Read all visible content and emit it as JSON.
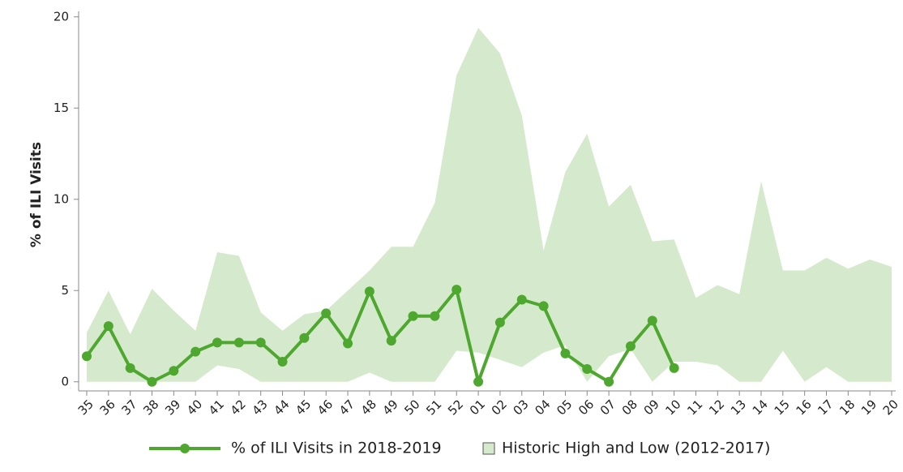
{
  "chart_data": {
    "type": "line",
    "y_label": "% of ILI Visits",
    "categories": [
      "35",
      "36",
      "37",
      "38",
      "39",
      "40",
      "41",
      "42",
      "43",
      "44",
      "45",
      "46",
      "47",
      "48",
      "49",
      "50",
      "51",
      "52",
      "01",
      "02",
      "03",
      "04",
      "05",
      "06",
      "07",
      "08",
      "09",
      "10",
      "11",
      "12",
      "13",
      "14",
      "15",
      "16",
      "17",
      "18",
      "19",
      "20"
    ],
    "series": [
      {
        "name": "% of ILI Visits in 2018-2019",
        "color": "#4ea72e",
        "values": [
          1.4,
          3.05,
          0.75,
          0.0,
          0.6,
          1.65,
          2.15,
          2.15,
          2.15,
          1.1,
          2.4,
          3.75,
          2.1,
          4.95,
          2.25,
          3.6,
          3.6,
          5.05,
          0.0,
          3.25,
          4.5,
          4.15,
          1.55,
          0.7,
          0.0,
          1.95,
          3.35,
          0.75,
          null,
          null,
          null,
          null,
          null,
          null,
          null,
          null,
          null,
          null
        ]
      }
    ],
    "band": {
      "name": "Historic High and Low (2012-2017)",
      "color": "#d5eacc",
      "high": [
        2.7,
        5.0,
        2.6,
        5.1,
        3.9,
        2.8,
        7.1,
        6.9,
        3.8,
        2.8,
        3.7,
        3.9,
        5.0,
        6.1,
        7.4,
        7.4,
        9.8,
        16.8,
        19.4,
        18.0,
        14.6,
        7.2,
        11.5,
        13.6,
        9.6,
        10.8,
        7.7,
        7.8,
        4.6,
        5.3,
        4.8,
        11.0,
        6.1,
        6.1,
        6.8,
        6.2,
        6.7,
        6.3
      ],
      "low": [
        0,
        0,
        0,
        0,
        0,
        0,
        0.9,
        0.7,
        0,
        0,
        0,
        0,
        0,
        0.5,
        0,
        0,
        0,
        1.7,
        1.6,
        1.2,
        0.8,
        1.6,
        2.0,
        0,
        1.4,
        1.8,
        0,
        1.1,
        1.1,
        0.9,
        0,
        0,
        1.7,
        0,
        0.8,
        0,
        0,
        0
      ]
    },
    "ylim": [
      -0.5,
      20.3
    ],
    "yticks": [
      0,
      5,
      10,
      15,
      20
    ],
    "grid": false
  }
}
